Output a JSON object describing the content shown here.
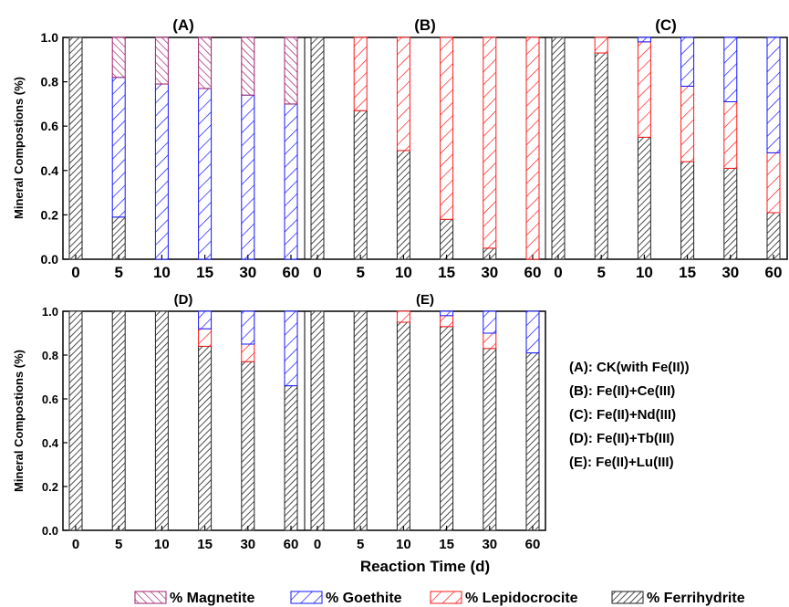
{
  "figure": {
    "ylabel": "Mineral Compostions (%)",
    "xlabel": "Reaction Time (d)",
    "conditions_key": [
      "(A): CK(with Fe(II))",
      "(B): Fe(II)+Ce(III)",
      "(C): Fe(II)+Nd(III)",
      "(D): Fe(II)+Tb(III)",
      "(E): Fe(II)+Lu(III)"
    ],
    "legend": [
      {
        "name": "% Magnetite",
        "color": "#a0206e",
        "hatch": "backslash"
      },
      {
        "name": "% Goethite",
        "color": "#1414ff",
        "hatch": "slash"
      },
      {
        "name": "% Lepidocrocite",
        "color": "#ff1a1a",
        "hatch": "slash"
      },
      {
        "name": "% Ferrihydrite",
        "color": "#222222",
        "hatch": "slash-dense"
      }
    ]
  },
  "chart_data": [
    {
      "type": "bar",
      "stacked": true,
      "title": "(A)",
      "categories": [
        "0",
        "5",
        "10",
        "15",
        "30",
        "60"
      ],
      "ylim": [
        0,
        1.0
      ],
      "yticks": [
        "0.0",
        "0.2",
        "0.4",
        "0.6",
        "0.8",
        "1.0"
      ],
      "series": [
        {
          "name": "% Ferrihydrite",
          "values": [
            1.0,
            0.19,
            0,
            0,
            0,
            0
          ]
        },
        {
          "name": "% Lepidocrocite",
          "values": [
            0,
            0,
            0,
            0,
            0,
            0
          ]
        },
        {
          "name": "% Goethite",
          "values": [
            0,
            0.63,
            0.79,
            0.77,
            0.74,
            0.7
          ]
        },
        {
          "name": "% Magnetite",
          "values": [
            0,
            0.18,
            0.21,
            0.23,
            0.26,
            0.3
          ]
        }
      ]
    },
    {
      "type": "bar",
      "stacked": true,
      "title": "(B)",
      "categories": [
        "0",
        "5",
        "10",
        "15",
        "30",
        "60"
      ],
      "ylim": [
        0,
        1.0
      ],
      "series": [
        {
          "name": "% Ferrihydrite",
          "values": [
            1.0,
            0.67,
            0.49,
            0.18,
            0.05,
            0
          ]
        },
        {
          "name": "% Lepidocrocite",
          "values": [
            0,
            0.33,
            0.51,
            0.82,
            0.95,
            1.0
          ]
        },
        {
          "name": "% Goethite",
          "values": [
            0,
            0,
            0,
            0,
            0,
            0
          ]
        },
        {
          "name": "% Magnetite",
          "values": [
            0,
            0,
            0,
            0,
            0,
            0
          ]
        }
      ]
    },
    {
      "type": "bar",
      "stacked": true,
      "title": "(C)",
      "categories": [
        "0",
        "5",
        "10",
        "15",
        "30",
        "60"
      ],
      "ylim": [
        0,
        1.0
      ],
      "series": [
        {
          "name": "% Ferrihydrite",
          "values": [
            1.0,
            0.93,
            0.55,
            0.44,
            0.41,
            0.21
          ]
        },
        {
          "name": "% Lepidocrocite",
          "values": [
            0,
            0.07,
            0.43,
            0.34,
            0.3,
            0.27
          ]
        },
        {
          "name": "% Goethite",
          "values": [
            0,
            0,
            0.02,
            0.22,
            0.29,
            0.52
          ]
        },
        {
          "name": "% Magnetite",
          "values": [
            0,
            0,
            0,
            0,
            0,
            0
          ]
        }
      ]
    },
    {
      "type": "bar",
      "stacked": true,
      "title": "(D)",
      "categories": [
        "0",
        "5",
        "10",
        "15",
        "30",
        "60"
      ],
      "ylim": [
        0,
        1.0
      ],
      "yticks": [
        "0.0",
        "0.2",
        "0.4",
        "0.6",
        "0.8",
        "1.0"
      ],
      "series": [
        {
          "name": "% Ferrihydrite",
          "values": [
            1.0,
            1.0,
            1.0,
            0.84,
            0.77,
            0.66
          ]
        },
        {
          "name": "% Lepidocrocite",
          "values": [
            0,
            0,
            0,
            0.08,
            0.08,
            0
          ]
        },
        {
          "name": "% Goethite",
          "values": [
            0,
            0,
            0,
            0.08,
            0.15,
            0.34
          ]
        },
        {
          "name": "% Magnetite",
          "values": [
            0,
            0,
            0,
            0,
            0,
            0
          ]
        }
      ]
    },
    {
      "type": "bar",
      "stacked": true,
      "title": "(E)",
      "categories": [
        "0",
        "5",
        "10",
        "15",
        "30",
        "60"
      ],
      "ylim": [
        0,
        1.0
      ],
      "series": [
        {
          "name": "% Ferrihydrite",
          "values": [
            1.0,
            1.0,
            0.95,
            0.93,
            0.83,
            0.81
          ]
        },
        {
          "name": "% Lepidocrocite",
          "values": [
            0,
            0,
            0.05,
            0.05,
            0.07,
            0
          ]
        },
        {
          "name": "% Goethite",
          "values": [
            0,
            0,
            0,
            0.02,
            0.1,
            0.19
          ]
        },
        {
          "name": "% Magnetite",
          "values": [
            0,
            0,
            0,
            0,
            0,
            0
          ]
        }
      ]
    }
  ]
}
